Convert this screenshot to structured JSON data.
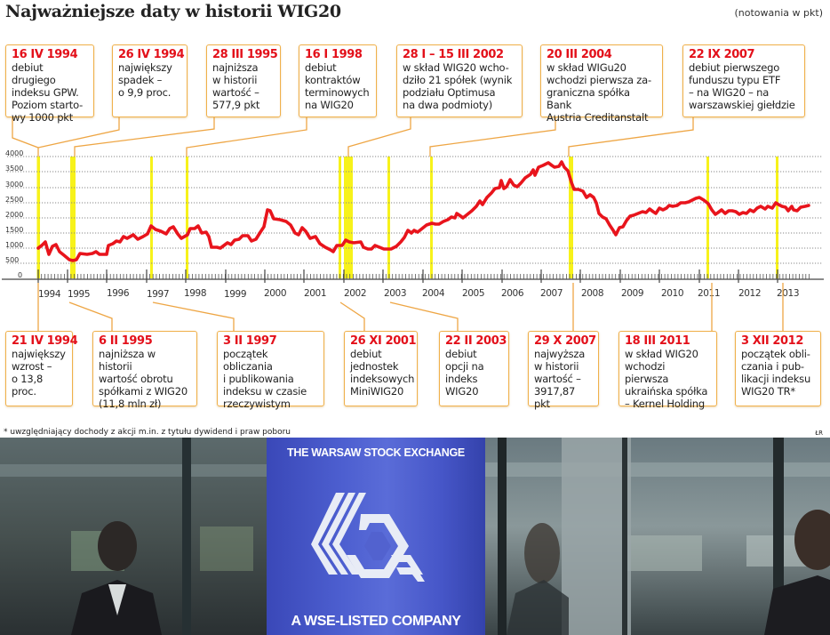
{
  "header": {
    "title": "Najważniejsze daty w historii WIG20",
    "units": "(notowania w pkt)"
  },
  "top_events": [
    {
      "date": "16 IV 1994",
      "desc": "debiut drugiego\nindeksu GPW.\nPoziom starto-\nwy 1000 pkt"
    },
    {
      "date": "26 IV 1994",
      "desc": "największy\nspadek –\no 9,9 proc."
    },
    {
      "date": "28 III 1995",
      "desc": "najniższa\nw historii\nwartość –\n577,9 pkt"
    },
    {
      "date": "16 I 1998",
      "desc": "debiut\nkontraktów\nterminowych\nna WIG20"
    },
    {
      "date": "28 I – 15 III 2002",
      "desc": "w skład WIG20 wcho-\ndziło 21 spółek (wynik\npodziału Optimusa\nna dwa podmioty)"
    },
    {
      "date": "20 III 2004",
      "desc": "w skład WIGu20\nwchodzi pierwsza za-\ngraniczna spółka Bank\nAustria Creditanstalt"
    },
    {
      "date": "22 IX 2007",
      "desc": "debiut pierwszego\nfunduszu typu ETF\n– na WIG20 – na\nwarszawskiej giełdzie"
    }
  ],
  "bottom_events": [
    {
      "date": "21 IV 1994",
      "desc": "największy\nwzrost –\no 13,8 proc."
    },
    {
      "date": "6 II 1995",
      "desc": "najniższa w historii\nwartość obrotu\nspółkami z WIG20\n(11,8 mln zł)"
    },
    {
      "date": "3 II 1997",
      "desc": "początek obliczania\ni publikowania\nindeksu w czasie\nrzeczywistym"
    },
    {
      "date": "26 XI 2001",
      "desc": "debiut\njednostek\nindeksowych\nMiniWIG20"
    },
    {
      "date": "22 II 2003",
      "desc": "debiut\nopcji na\nindeks\nWIG20"
    },
    {
      "date": "29 X 2007",
      "desc": "najwyższa\nw historii\nwartość –\n3917,87 pkt"
    },
    {
      "date": "18 III 2011",
      "desc": "w skład WIG20\nwchodzi pierwsza\nukraińska spółka\n– Kernel Holding"
    },
    {
      "date": "3 XII 2012",
      "desc": "początek obli-\nczania i pub-\nlikacji indeksu\nWIG20 TR*"
    }
  ],
  "footnote": "* uwzględniający dochody z akcji m.in. z tytułu dywidend i praw poboru",
  "credit": "ŁR",
  "photo": {
    "banner_top": "THE WARSAW STOCK EXCHANGE",
    "banner_bottom": "A WSE-LISTED COMPANY",
    "logo": "wse-logo-icon"
  },
  "colors": {
    "line": "#e8141c",
    "highlight": "#f7f21a",
    "callout_border": "#f0b04a",
    "date_text": "#e3101a"
  },
  "chart_data": {
    "type": "line",
    "title": "Najważniejsze daty w historii WIG20",
    "subtitle": "(notowania w pkt)",
    "xlabel": "",
    "ylabel": "",
    "ylim": [
      0,
      4000
    ],
    "yticks": [
      "0",
      "500",
      "1000",
      "1500",
      "2000",
      "2500",
      "3000",
      "3500",
      "4000"
    ],
    "xticks": [
      "1994",
      "1995",
      "1996",
      "1997",
      "1998",
      "1999",
      "2000",
      "2001",
      "2002",
      "2003",
      "2004",
      "2005",
      "2006",
      "2007",
      "2008",
      "2009",
      "2010",
      "2011",
      "2012",
      "2013"
    ],
    "grid": "horizontal dotted",
    "legend": "none",
    "series": [
      {
        "name": "WIG20",
        "x": [
          1994.3,
          1994.5,
          1994.6,
          1994.8,
          1995.0,
          1995.2,
          1995.4,
          1995.6,
          1996.0,
          1996.2,
          1996.5,
          1996.8,
          1997.1,
          1997.3,
          1997.6,
          1997.8,
          1998.0,
          1998.2,
          1998.4,
          1998.6,
          1998.7,
          1999.0,
          1999.3,
          1999.6,
          1999.8,
          2000.0,
          2000.2,
          2000.5,
          2000.8,
          2001.0,
          2001.3,
          2001.6,
          2001.8,
          2002.0,
          2002.3,
          2002.6,
          2002.9,
          2003.2,
          2003.5,
          2003.8,
          2004.0,
          2004.4,
          2004.8,
          2005.2,
          2005.5,
          2005.8,
          2006.1,
          2006.3,
          2006.5,
          2006.8,
          2007.0,
          2007.3,
          2007.6,
          2007.8,
          2008.0,
          2008.3,
          2008.6,
          2008.9,
          2009.1,
          2009.4,
          2009.7,
          2010.0,
          2010.3,
          2010.6,
          2010.9,
          2011.1,
          2011.4,
          2011.7,
          2012.0,
          2012.3,
          2012.6,
          2012.9,
          2013.2,
          2013.5
        ],
        "values": [
          1000,
          1180,
          780,
          1080,
          800,
          620,
          580,
          800,
          800,
          1100,
          1350,
          1450,
          1750,
          1600,
          1500,
          1700,
          1450,
          1800,
          1850,
          1600,
          1150,
          1150,
          1350,
          1600,
          1400,
          2300,
          2000,
          1900,
          1500,
          1750,
          1400,
          1100,
          1000,
          1200,
          1450,
          1300,
          1050,
          1200,
          1100,
          1350,
          1650,
          1750,
          1800,
          2050,
          2300,
          2850,
          3050,
          3350,
          2900,
          3300,
          3350,
          3600,
          3700,
          3917.87,
          3000,
          2900,
          2250,
          1550,
          1750,
          2000,
          2250,
          2350,
          2400,
          2500,
          2650,
          2800,
          2850,
          2300,
          2400,
          2200,
          2300,
          2450,
          2400,
          2450
        ]
      }
    ],
    "annotations": [
      "16 IV 1994",
      "21 IV 1994",
      "26 IV 1994",
      "6 II 1995",
      "28 III 1995",
      "3 II 1997",
      "16 I 1998",
      "26 XI 2001",
      "28 I – 15 III 2002",
      "22 II 2003",
      "20 III 2004",
      "22 IX 2007",
      "29 X 2007",
      "18 III 2011",
      "3 XII 2012"
    ]
  }
}
